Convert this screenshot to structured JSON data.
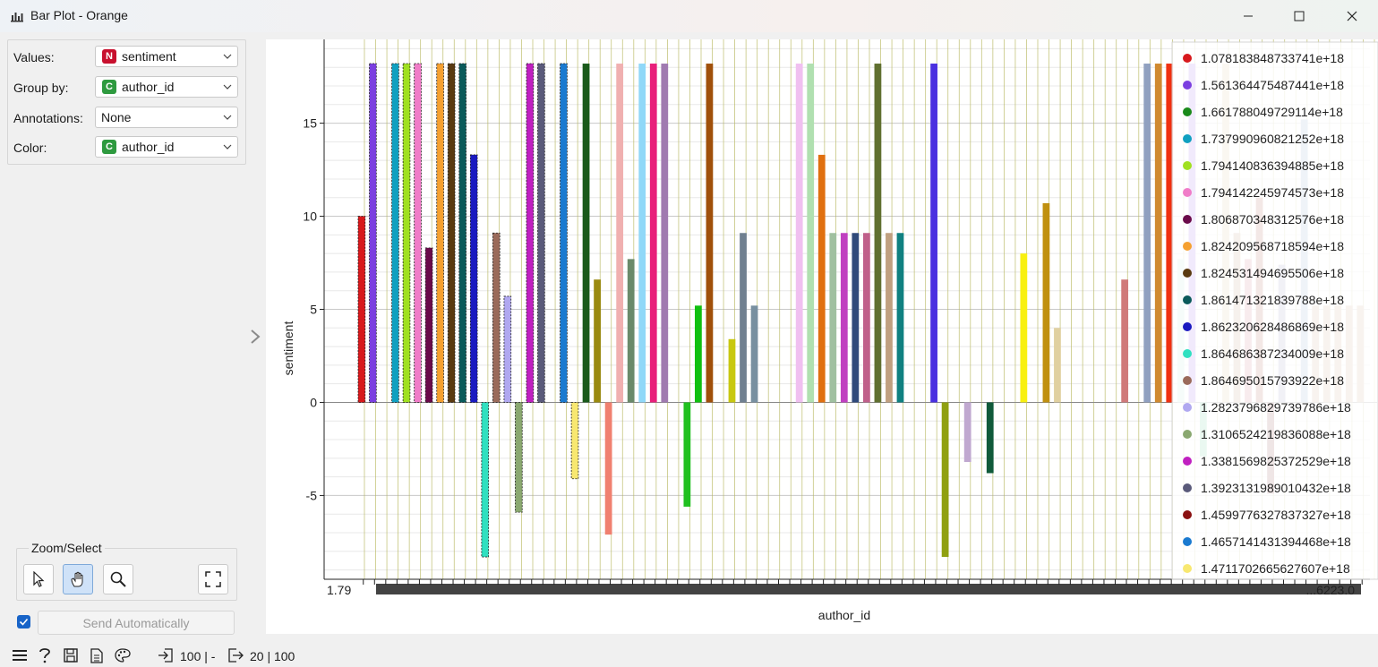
{
  "window": {
    "title": "Bar Plot - Orange"
  },
  "controls": [
    {
      "label": "Values:",
      "value": "sentiment",
      "badge": "N",
      "badge_color": "#c8102e"
    },
    {
      "label": "Group by:",
      "value": "author_id",
      "badge": "C",
      "badge_color": "#2e9a3f"
    },
    {
      "label": "Annotations:",
      "value": "None",
      "badge": "",
      "badge_color": ""
    },
    {
      "label": "Color:",
      "value": "author_id",
      "badge": "C",
      "badge_color": "#2e9a3f"
    }
  ],
  "zoom": {
    "title": "Zoom/Select",
    "tools": [
      "pointer-icon",
      "pan-hand-icon",
      "zoom-magnifier-icon",
      "fit-to-view-icon"
    ],
    "active": "pan-hand-icon"
  },
  "send": {
    "checked": true,
    "label": "Send Automatically"
  },
  "status": {
    "input_count": "100 | -",
    "output_count": "20 | 100"
  },
  "chart_data": {
    "type": "bar",
    "xlabel": "author_id",
    "ylabel": "sentiment",
    "ylim": [
      -9.5,
      19.5
    ],
    "yticks": [
      "-5",
      "0",
      "5",
      "10",
      "15"
    ],
    "grid": true,
    "legend_position": "right",
    "x_tick_first": "1.79",
    "x_tick_last": "...6223.0",
    "bars": [
      {
        "v": 10.0,
        "c": "#d7191c"
      },
      {
        "v": 18.2,
        "c": "#7b3fe0"
      },
      {
        "v": 0.0,
        "c": "#1a8a1a"
      },
      {
        "v": 18.2,
        "c": "#10a0c0"
      },
      {
        "v": 18.2,
        "c": "#a0e020"
      },
      {
        "v": 18.2,
        "c": "#f07cc8"
      },
      {
        "v": 8.3,
        "c": "#6a0a4a"
      },
      {
        "v": 18.2,
        "c": "#f5a030"
      },
      {
        "v": 18.2,
        "c": "#5a3a10"
      },
      {
        "v": 18.2,
        "c": "#0a5a5a"
      },
      {
        "v": 13.3,
        "c": "#1a1ac0"
      },
      {
        "v": -8.3,
        "c": "#30e0c0"
      },
      {
        "v": 9.1,
        "c": "#9a6a5a"
      },
      {
        "v": 5.7,
        "c": "#b0a8f0"
      },
      {
        "v": -5.9,
        "c": "#8aa870"
      },
      {
        "v": 18.2,
        "c": "#c020c0"
      },
      {
        "v": 18.2,
        "c": "#5a5a7a"
      },
      {
        "v": 0.0,
        "c": "#8a1010"
      },
      {
        "v": 18.2,
        "c": "#1a7ad0"
      },
      {
        "v": -4.1,
        "c": "#f8e870"
      },
      {
        "v": 18.2,
        "c": "#1a5a1a"
      },
      {
        "v": 6.6,
        "c": "#9a8a10"
      },
      {
        "v": -7.1,
        "c": "#f08070"
      },
      {
        "v": 18.2,
        "c": "#f0b0b0"
      },
      {
        "v": 7.7,
        "c": "#6a8a6a"
      },
      {
        "v": 18.2,
        "c": "#90d8f8"
      },
      {
        "v": 18.2,
        "c": "#e8207a"
      },
      {
        "v": 18.2,
        "c": "#a07ab0"
      },
      {
        "v": 0.0,
        "c": "#cccccc"
      },
      {
        "v": -5.6,
        "c": "#20c020"
      },
      {
        "v": 5.2,
        "c": "#10c010"
      },
      {
        "v": 18.2,
        "c": "#a0500a"
      },
      {
        "v": 0.0,
        "c": "#cccccc"
      },
      {
        "v": 3.4,
        "c": "#c8c810"
      },
      {
        "v": 9.1,
        "c": "#708090"
      },
      {
        "v": 5.2,
        "c": "#7890a0"
      },
      {
        "v": 0.0,
        "c": "#cccccc"
      },
      {
        "v": 0.0,
        "c": "#cccccc"
      },
      {
        "v": 0.0,
        "c": "#cccccc"
      },
      {
        "v": 18.2,
        "c": "#f0c0f0"
      },
      {
        "v": 18.2,
        "c": "#b0e0b0"
      },
      {
        "v": 13.3,
        "c": "#e07010"
      },
      {
        "v": 9.1,
        "c": "#a0c0a0"
      },
      {
        "v": 9.1,
        "c": "#c040c0"
      },
      {
        "v": 9.1,
        "c": "#304a7a"
      },
      {
        "v": 9.1,
        "c": "#c0608a"
      },
      {
        "v": 18.2,
        "c": "#607030"
      },
      {
        "v": 9.1,
        "c": "#c0a080"
      },
      {
        "v": 9.1,
        "c": "#108080"
      },
      {
        "v": 0.0,
        "c": "#cccccc"
      },
      {
        "v": 0.0,
        "c": "#cccccc"
      },
      {
        "v": 18.2,
        "c": "#4a30e0"
      },
      {
        "v": -8.3,
        "c": "#90a010"
      },
      {
        "v": 0.0,
        "c": "#cccccc"
      },
      {
        "v": -3.2,
        "c": "#c0a8d0"
      },
      {
        "v": 0.0,
        "c": "#cccccc"
      },
      {
        "v": -3.8,
        "c": "#105a3a"
      },
      {
        "v": 0.0,
        "c": "#cccccc"
      },
      {
        "v": 0.0,
        "c": "#cccccc"
      },
      {
        "v": 8.0,
        "c": "#f8f010"
      },
      {
        "v": 0.0,
        "c": "#cccccc"
      },
      {
        "v": 10.7,
        "c": "#c09010"
      },
      {
        "v": 4.0,
        "c": "#e0d0a0"
      },
      {
        "v": 0.0,
        "c": "#cccccc"
      },
      {
        "v": 0.0,
        "c": "#cccccc"
      },
      {
        "v": 0.0,
        "c": "#cccccc"
      },
      {
        "v": 0.0,
        "c": "#cccccc"
      },
      {
        "v": 0.0,
        "c": "#cccccc"
      },
      {
        "v": 6.6,
        "c": "#d07a7a"
      },
      {
        "v": 0.0,
        "c": "#cccccc"
      },
      {
        "v": 18.2,
        "c": "#90a0c0"
      },
      {
        "v": 18.2,
        "c": "#d08a30"
      },
      {
        "v": 18.2,
        "c": "#f03010"
      },
      {
        "v": 7.7,
        "c": "#c0f0e0"
      },
      {
        "v": 18.2,
        "c": "#a070f0"
      },
      {
        "v": -2.9,
        "c": "#70d0a0"
      },
      {
        "v": 0.0,
        "c": "#cccccc"
      },
      {
        "v": 18.2,
        "c": "#e0c8a0"
      },
      {
        "v": 9.1,
        "c": "#c0a080"
      },
      {
        "v": 7.7,
        "c": "#d07a8a"
      },
      {
        "v": 11.0,
        "c": "#b06050"
      },
      {
        "v": -4.9,
        "c": "#905050"
      },
      {
        "v": 7.4,
        "c": "#a0a0c0"
      },
      {
        "v": 0.0,
        "c": "#cccccc"
      },
      {
        "v": 15.2,
        "c": "#90b0d0"
      },
      {
        "v": 5.2,
        "c": "#d0b090"
      },
      {
        "v": 5.2,
        "c": "#d0b090"
      },
      {
        "v": 5.2,
        "c": "#d0b090"
      },
      {
        "v": 5.2,
        "c": "#d0b090"
      },
      {
        "v": 5.2,
        "c": "#d0b090"
      }
    ],
    "legend": [
      {
        "label": "1.078183848733741e+18",
        "color": "#d7191c"
      },
      {
        "label": "1.561364475487441e+18",
        "color": "#7b3fe0"
      },
      {
        "label": "1.661788049729114e+18",
        "color": "#1a8a1a"
      },
      {
        "label": "1.737990960821252e+18",
        "color": "#10a0c0"
      },
      {
        "label": "1.794140836394885e+18",
        "color": "#a0e020"
      },
      {
        "label": "1.794142245974573e+18",
        "color": "#f07cc8"
      },
      {
        "label": "1.806870348312576e+18",
        "color": "#6a0a4a"
      },
      {
        "label": "1.824209568718594e+18",
        "color": "#f5a030"
      },
      {
        "label": "1.824531494695506e+18",
        "color": "#5a3a10"
      },
      {
        "label": "1.861471321839788e+18",
        "color": "#0a5a5a"
      },
      {
        "label": "1.862320628486869e+18",
        "color": "#1a1ac0"
      },
      {
        "label": "1.864686387234009e+18",
        "color": "#30e0c0"
      },
      {
        "label": "1.864695015793922e+18",
        "color": "#9a6a5a"
      },
      {
        "label": "1.282379682973978​6e+18",
        "color": "#b0a8f0"
      },
      {
        "label": "1.310652421983608​8e+18",
        "color": "#8aa870"
      },
      {
        "label": "1.338156982537252​9e+18",
        "color": "#c020c0"
      },
      {
        "label": "1.392313198901043​2e+18",
        "color": "#5a5a7a"
      },
      {
        "label": "1.459977632783732​7e+18",
        "color": "#8a1010"
      },
      {
        "label": "1.465714143139446​8e+18",
        "color": "#1a7ad0"
      },
      {
        "label": "1.471170266562760​7e+18",
        "color": "#f8e870"
      }
    ]
  }
}
